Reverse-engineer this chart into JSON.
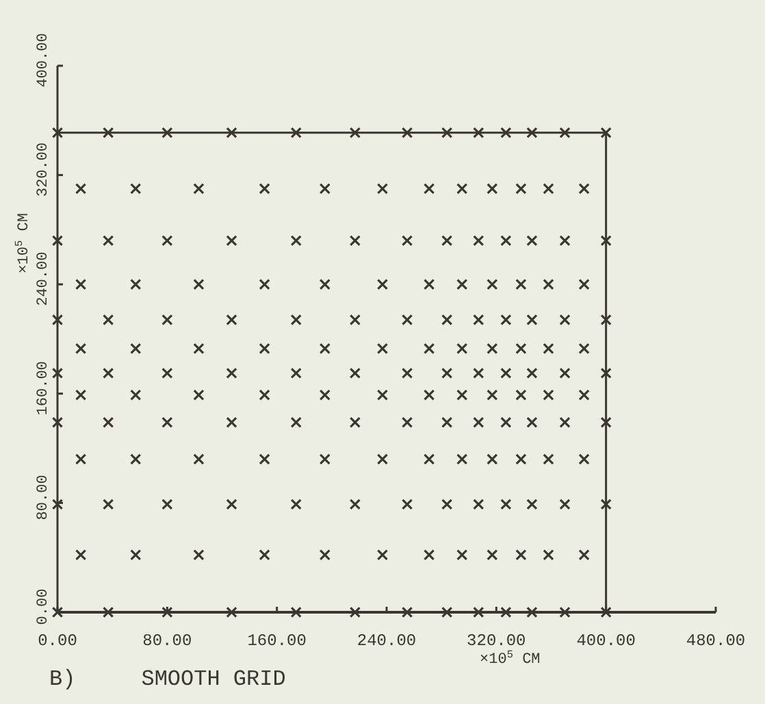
{
  "chart_data": {
    "type": "scatter",
    "title": "B)     SMOOTH GRID",
    "xlabel": "×10$^{5}$ CM",
    "ylabel": "×10$^{5}$ CM",
    "xlim": [
      0,
      480
    ],
    "ylim": [
      0,
      400
    ],
    "xticks": [
      {
        "value": 0,
        "label": "0.00"
      },
      {
        "value": 80,
        "label": "80.00"
      },
      {
        "value": 160,
        "label": "160.00"
      },
      {
        "value": 240,
        "label": "240.00"
      },
      {
        "value": 320,
        "label": "320.00"
      },
      {
        "value": 400,
        "label": "400.00"
      },
      {
        "value": 480,
        "label": "480.00"
      }
    ],
    "yticks": [
      {
        "value": 0,
        "label": "0.00"
      },
      {
        "value": 80,
        "label": "80.00"
      },
      {
        "value": 160,
        "label": "160.00"
      },
      {
        "value": 240,
        "label": "240.00"
      },
      {
        "value": 320,
        "label": "320.00"
      },
      {
        "value": 400,
        "label": "400.00"
      }
    ],
    "grid": false,
    "series": [
      {
        "color": "#3b3632",
        "marker": "cross",
        "x": [
          0,
          37,
          80,
          127,
          174,
          217,
          255,
          284,
          307,
          327,
          346,
          370,
          400,
          17,
          57,
          103,
          151,
          195,
          237,
          271,
          295,
          317,
          338,
          358,
          384,
          0,
          37,
          80,
          127,
          174,
          217,
          255,
          284,
          307,
          327,
          346,
          370,
          400,
          17,
          57,
          103,
          151,
          195,
          237,
          271,
          295,
          317,
          338,
          358,
          384,
          0,
          37,
          80,
          127,
          174,
          217,
          255,
          284,
          307,
          327,
          346,
          370,
          400,
          17,
          57,
          103,
          151,
          195,
          237,
          271,
          295,
          317,
          338,
          358,
          384,
          0,
          37,
          80,
          127,
          174,
          217,
          255,
          284,
          307,
          327,
          346,
          370,
          400,
          17,
          57,
          103,
          151,
          195,
          237,
          271,
          295,
          317,
          338,
          358,
          384,
          0,
          37,
          80,
          127,
          174,
          217,
          255,
          284,
          307,
          327,
          346,
          370,
          400,
          17,
          57,
          103,
          151,
          195,
          237,
          271,
          295,
          317,
          338,
          358,
          384,
          0,
          37,
          80,
          127,
          174,
          217,
          255,
          284,
          307,
          327,
          346,
          370,
          400,
          17,
          57,
          103,
          151,
          195,
          237,
          271,
          295,
          317,
          338,
          358,
          384,
          0,
          37,
          80,
          127,
          174,
          217,
          255,
          284,
          307,
          327,
          346,
          370,
          400
        ],
        "values": [
          351,
          351,
          351,
          351,
          351,
          351,
          351,
          351,
          351,
          351,
          351,
          351,
          351,
          310,
          310,
          310,
          310,
          310,
          310,
          310,
          310,
          310,
          310,
          310,
          310,
          272,
          272,
          272,
          272,
          272,
          272,
          272,
          272,
          272,
          272,
          272,
          272,
          272,
          240,
          240,
          240,
          240,
          240,
          240,
          240,
          240,
          240,
          240,
          240,
          240,
          214,
          214,
          214,
          214,
          214,
          214,
          214,
          214,
          214,
          214,
          214,
          214,
          214,
          193,
          193,
          193,
          193,
          193,
          193,
          193,
          193,
          193,
          193,
          193,
          193,
          175,
          175,
          175,
          175,
          175,
          175,
          175,
          175,
          175,
          175,
          175,
          175,
          175,
          159,
          159,
          159,
          159,
          159,
          159,
          159,
          159,
          159,
          159,
          159,
          159,
          139,
          139,
          139,
          139,
          139,
          139,
          139,
          139,
          139,
          139,
          139,
          139,
          139,
          112,
          112,
          112,
          112,
          112,
          112,
          112,
          112,
          112,
          112,
          112,
          112,
          79,
          79,
          79,
          79,
          79,
          79,
          79,
          79,
          79,
          79,
          79,
          79,
          79,
          42,
          42,
          42,
          42,
          42,
          42,
          42,
          42,
          42,
          42,
          42,
          42,
          0,
          0,
          0,
          0,
          0,
          0,
          0,
          0,
          0,
          0,
          0,
          0,
          0
        ]
      },
      {
        "type": "line",
        "color": "#3b3632",
        "marker": "none",
        "x": [
          0,
          400,
          400
        ],
        "values": [
          351,
          351,
          0
        ]
      }
    ]
  }
}
